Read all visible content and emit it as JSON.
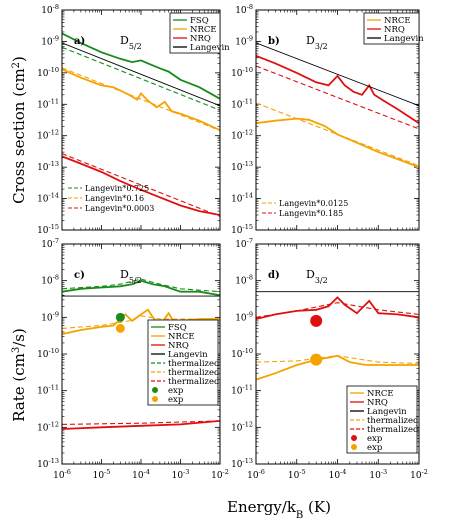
{
  "figure": {
    "ylabel_top": "Cross section (cm",
    "ylabel_top_sup": "2",
    "ylabel_top_end": ")",
    "ylabel_bottom": "Rate (cm",
    "ylabel_bottom_sup": "3",
    "ylabel_bottom_end": "/s)",
    "xlabel_main": "Energy/k",
    "xlabel_sub": "B",
    "xlabel_end": " (K)"
  },
  "colors": {
    "fsq": "#1a8a1a",
    "nrce": "#f5a300",
    "nrq": "#e01010",
    "langevin": "#000000"
  },
  "chart_data": [
    {
      "type": "line",
      "panel": "a)",
      "title_main": "D",
      "title_sub": "5/2",
      "xscale": "log",
      "yscale": "log",
      "xlim": [
        1e-06,
        0.01
      ],
      "ylim": [
        1e-15,
        1e-08
      ],
      "x_ticks": [
        "10",
        "10",
        "10",
        "10",
        "10"
      ],
      "x_tick_exp": [
        "-6",
        "-5",
        "-4",
        "-3",
        "-2"
      ],
      "y_ticks": [
        "10",
        "10",
        "10",
        "10",
        "10",
        "10",
        "10",
        "10"
      ],
      "y_tick_exp": [
        "-15",
        "-14",
        "-13",
        "-12",
        "-11",
        "-10",
        "-9",
        "-8"
      ],
      "legend": [
        "FSQ",
        "NRCE",
        "NRQ",
        "Langevin"
      ],
      "ref_legend": [
        "Langevin*0.725",
        "Langevin*0.16",
        "Langevin*0.0003"
      ],
      "series": [
        {
          "name": "FSQ",
          "color": "#1a8a1a",
          "style": "solid",
          "points": [
            [
              1e-06,
              1.8e-09
            ],
            [
              3e-06,
              9e-10
            ],
            [
              1e-05,
              4.5e-10
            ],
            [
              3e-05,
              2.8e-10
            ],
            [
              6e-05,
              2.2e-10
            ],
            [
              0.0001,
              2.5e-10
            ],
            [
              0.00015,
              2e-10
            ],
            [
              0.0003,
              1.4e-10
            ],
            [
              0.0005,
              1.1e-10
            ],
            [
              0.001,
              6e-11
            ],
            [
              0.003,
              3.5e-11
            ],
            [
              0.01,
              1.5e-11
            ]
          ]
        },
        {
          "name": "NRCE",
          "color": "#f5a300",
          "style": "solid",
          "points": [
            [
              1e-06,
              1.3e-10
            ],
            [
              3e-06,
              7e-11
            ],
            [
              1e-05,
              4e-11
            ],
            [
              2e-05,
              3.5e-11
            ],
            [
              5e-05,
              2e-11
            ],
            [
              8e-05,
              1.4e-11
            ],
            [
              0.0001,
              2.2e-11
            ],
            [
              0.00015,
              1.3e-11
            ],
            [
              0.00025,
              8e-12
            ],
            [
              0.0004,
              1.2e-11
            ],
            [
              0.0006,
              6e-12
            ],
            [
              0.001,
              5e-12
            ],
            [
              0.003,
              3e-12
            ],
            [
              0.01,
              1.5e-12
            ]
          ]
        },
        {
          "name": "NRQ",
          "color": "#e01010",
          "style": "solid",
          "points": [
            [
              1e-06,
              2.2e-13
            ],
            [
              3e-06,
              1.3e-13
            ],
            [
              1e-05,
              7e-14
            ],
            [
              3e-05,
              3.6e-14
            ],
            [
              0.0001,
              1.9e-14
            ],
            [
              0.0003,
              1.1e-14
            ],
            [
              0.001,
              6e-15
            ],
            [
              0.003,
              4e-15
            ],
            [
              0.01,
              3e-15
            ]
          ]
        },
        {
          "name": "Langevin",
          "color": "#000000",
          "style": "solid",
          "points": [
            [
              1e-06,
              9e-10
            ],
            [
              0.01,
              9e-12
            ]
          ]
        },
        {
          "name": "Langevin*0.725",
          "color": "#1a8a1a",
          "style": "dashed",
          "points": [
            [
              1e-06,
              6.5e-10
            ],
            [
              0.01,
              6.5e-12
            ]
          ]
        },
        {
          "name": "Langevin*0.16",
          "color": "#f5a300",
          "style": "dashed",
          "points": [
            [
              1e-06,
              1.45e-10
            ],
            [
              0.01,
              1.45e-12
            ]
          ]
        },
        {
          "name": "Langevin*0.0003",
          "color": "#e01010",
          "style": "dashed",
          "points": [
            [
              1e-06,
              2.7e-13
            ],
            [
              0.01,
              2.7e-15
            ]
          ]
        }
      ]
    },
    {
      "type": "line",
      "panel": "b)",
      "title_main": "D",
      "title_sub": "3/2",
      "xscale": "log",
      "yscale": "log",
      "xlim": [
        1e-06,
        0.01
      ],
      "ylim": [
        1e-15,
        1e-08
      ],
      "legend": [
        "NRCE",
        "NRQ",
        "Langevin"
      ],
      "ref_legend": [
        "Langevin*0.0125",
        "Langevin*0.185"
      ],
      "series": [
        {
          "name": "NRCE",
          "color": "#f5a300",
          "style": "solid",
          "points": [
            [
              1e-06,
              2.5e-12
            ],
            [
              3e-06,
              3e-12
            ],
            [
              1e-05,
              3.5e-12
            ],
            [
              2e-05,
              3.2e-12
            ],
            [
              5e-05,
              2e-12
            ],
            [
              0.0001,
              1.1e-12
            ],
            [
              0.0003,
              6e-13
            ],
            [
              0.001,
              3e-13
            ],
            [
              0.003,
              1.8e-13
            ],
            [
              0.01,
              1e-13
            ]
          ]
        },
        {
          "name": "NRQ",
          "color": "#e01010",
          "style": "solid",
          "points": [
            [
              1e-06,
              3.5e-10
            ],
            [
              3e-06,
              2e-10
            ],
            [
              1e-05,
              1e-10
            ],
            [
              3e-05,
              5e-11
            ],
            [
              6e-05,
              4e-11
            ],
            [
              0.0001,
              8e-11
            ],
            [
              0.00015,
              4e-11
            ],
            [
              0.00025,
              2.5e-11
            ],
            [
              0.0004,
              2e-11
            ],
            [
              0.0006,
              4e-11
            ],
            [
              0.0008,
              2e-11
            ],
            [
              0.0015,
              1.2e-11
            ],
            [
              0.003,
              7e-12
            ],
            [
              0.01,
              2.5e-12
            ]
          ]
        },
        {
          "name": "Langevin",
          "color": "#000000",
          "style": "solid",
          "points": [
            [
              1e-06,
              9e-10
            ],
            [
              0.01,
              9e-12
            ]
          ]
        },
        {
          "name": "Langevin*0.0125",
          "color": "#f5a300",
          "style": "dashed",
          "points": [
            [
              1e-06,
              1.1e-11
            ],
            [
              0.01,
              1.1e-13
            ]
          ]
        },
        {
          "name": "Langevin*0.185",
          "color": "#e01010",
          "style": "dashed",
          "points": [
            [
              1e-06,
              1.65e-10
            ],
            [
              0.01,
              1.65e-12
            ]
          ]
        }
      ]
    },
    {
      "type": "line",
      "panel": "c)",
      "title_main": "D",
      "title_sub": "5/2",
      "xscale": "log",
      "yscale": "log",
      "xlim": [
        1e-06,
        0.01
      ],
      "ylim": [
        1e-13,
        1e-07
      ],
      "y_ticks": [
        "10",
        "10",
        "10",
        "10",
        "10",
        "10",
        "10"
      ],
      "y_tick_exp": [
        "-13",
        "-12",
        "-11",
        "-10",
        "-9",
        "-8",
        "-7"
      ],
      "legend": [
        "FSQ",
        "NRCE",
        "NRQ",
        "Langevin",
        "thermalized",
        "thermalized",
        "thermalized",
        "exp",
        "exp"
      ],
      "series": [
        {
          "name": "FSQ",
          "color": "#1a8a1a",
          "style": "solid",
          "points": [
            [
              1e-06,
              5e-09
            ],
            [
              3e-06,
              6e-09
            ],
            [
              1e-05,
              6.5e-09
            ],
            [
              3e-05,
              7e-09
            ],
            [
              6e-05,
              8e-09
            ],
            [
              0.0001,
              1e-08
            ],
            [
              0.0002,
              8e-09
            ],
            [
              0.0004,
              7e-09
            ],
            [
              0.001,
              5e-09
            ],
            [
              0.003,
              5e-09
            ],
            [
              0.01,
              4e-09
            ]
          ]
        },
        {
          "name": "FSQ thermalized",
          "color": "#1a8a1a",
          "style": "dashed",
          "points": [
            [
              1e-06,
              6e-09
            ],
            [
              1e-05,
              7e-09
            ],
            [
              3e-05,
              8e-09
            ],
            [
              0.0001,
              1.1e-08
            ],
            [
              0.0003,
              8e-09
            ],
            [
              0.001,
              6e-09
            ],
            [
              0.01,
              5e-09
            ]
          ]
        },
        {
          "name": "NRCE",
          "color": "#f5a300",
          "style": "solid",
          "points": [
            [
              1e-06,
              3.5e-10
            ],
            [
              3e-06,
              4.5e-10
            ],
            [
              1e-05,
              5.5e-10
            ],
            [
              2e-05,
              6e-10
            ],
            [
              4e-05,
              1.2e-09
            ],
            [
              6e-05,
              8e-10
            ],
            [
              0.0001,
              1.2e-09
            ],
            [
              0.00015,
              1.6e-09
            ],
            [
              0.0002,
              1e-09
            ],
            [
              0.0003,
              6e-10
            ],
            [
              0.0005,
              1.3e-09
            ],
            [
              0.0007,
              7e-10
            ],
            [
              0.001,
              8e-10
            ],
            [
              0.003,
              9e-10
            ],
            [
              0.01,
              9e-10
            ]
          ]
        },
        {
          "name": "NRCE thermalized",
          "color": "#f5a300",
          "style": "dashed",
          "points": [
            [
              1e-06,
              5e-10
            ],
            [
              1e-05,
              6e-10
            ],
            [
              5e-05,
              8e-10
            ],
            [
              0.0001,
              1.1e-09
            ],
            [
              0.0003,
              9e-10
            ],
            [
              0.001,
              9e-10
            ],
            [
              0.01,
              9e-10
            ]
          ]
        },
        {
          "name": "NRQ",
          "color": "#e01010",
          "style": "solid",
          "points": [
            [
              1e-06,
              9e-13
            ],
            [
              1e-05,
              1e-12
            ],
            [
              0.0001,
              1.1e-12
            ],
            [
              0.001,
              1.2e-12
            ],
            [
              0.01,
              1.5e-12
            ]
          ]
        },
        {
          "name": "NRQ thermalized",
          "color": "#e01010",
          "style": "dashed",
          "points": [
            [
              1e-06,
              1.2e-12
            ],
            [
              0.0001,
              1.3e-12
            ],
            [
              0.01,
              1.5e-12
            ]
          ]
        },
        {
          "name": "Langevin",
          "color": "#000000",
          "style": "solid",
          "points": [
            [
              1e-06,
              3.8e-09
            ],
            [
              0.01,
              3.8e-09
            ]
          ]
        },
        {
          "name": "exp",
          "color": "#1a8a1a",
          "style": "marker",
          "points": [
            [
              3e-05,
              1e-09
            ]
          ]
        },
        {
          "name": "exp",
          "color": "#f5a300",
          "style": "marker",
          "points": [
            [
              3e-05,
              5e-10
            ]
          ]
        }
      ]
    },
    {
      "type": "line",
      "panel": "d)",
      "title_main": "D",
      "title_sub": "3/2",
      "xscale": "log",
      "yscale": "log",
      "xlim": [
        1e-06,
        0.01
      ],
      "ylim": [
        1e-13,
        1e-07
      ],
      "legend": [
        "NRCE",
        "NRQ",
        "Langevin",
        "thermalized",
        "thermalized",
        "exp",
        "exp"
      ],
      "series": [
        {
          "name": "NRCE",
          "color": "#f5a300",
          "style": "solid",
          "points": [
            [
              1e-06,
              2e-11
            ],
            [
              3e-06,
              3e-11
            ],
            [
              1e-05,
              5e-11
            ],
            [
              3e-05,
              7e-11
            ],
            [
              6e-05,
              8e-11
            ],
            [
              0.0001,
              9e-11
            ],
            [
              0.0002,
              6e-11
            ],
            [
              0.0005,
              5e-11
            ],
            [
              0.001,
              5e-11
            ],
            [
              0.003,
              5e-11
            ],
            [
              0.01,
              5e-11
            ]
          ]
        },
        {
          "name": "NRCE thermalized",
          "color": "#f5a300",
          "style": "dashed",
          "points": [
            [
              1e-06,
              6e-11
            ],
            [
              1e-05,
              6.5e-11
            ],
            [
              0.0001,
              9e-11
            ],
            [
              0.001,
              6e-11
            ],
            [
              0.01,
              5.5e-11
            ]
          ]
        },
        {
          "name": "NRQ",
          "color": "#e01010",
          "style": "solid",
          "points": [
            [
              1e-06,
              9e-10
            ],
            [
              3e-06,
              1.2e-09
            ],
            [
              1e-05,
              1.5e-09
            ],
            [
              3e-05,
              1.6e-09
            ],
            [
              6e-05,
              2e-09
            ],
            [
              0.0001,
              3.5e-09
            ],
            [
              0.00015,
              2.2e-09
            ],
            [
              0.0003,
              1.3e-09
            ],
            [
              0.0006,
              2.8e-09
            ],
            [
              0.001,
              1.3e-09
            ],
            [
              0.003,
              1.2e-09
            ],
            [
              0.01,
              1e-09
            ]
          ]
        },
        {
          "name": "NRQ thermalized",
          "color": "#e01010",
          "style": "dashed",
          "points": [
            [
              1e-06,
              1e-09
            ],
            [
              1e-05,
              1.5e-09
            ],
            [
              0.0001,
              2.5e-09
            ],
            [
              0.001,
              1.6e-09
            ],
            [
              0.01,
              1.2e-09
            ]
          ]
        },
        {
          "name": "Langevin",
          "color": "#000000",
          "style": "solid",
          "points": [
            [
              1e-06,
              5e-09
            ],
            [
              0.01,
              5e-09
            ]
          ]
        },
        {
          "name": "exp",
          "color": "#e01010",
          "style": "marker",
          "points": [
            [
              3e-05,
              8e-10
            ]
          ]
        },
        {
          "name": "exp",
          "color": "#f5a300",
          "style": "marker",
          "points": [
            [
              3e-05,
              7e-11
            ]
          ]
        }
      ]
    }
  ]
}
